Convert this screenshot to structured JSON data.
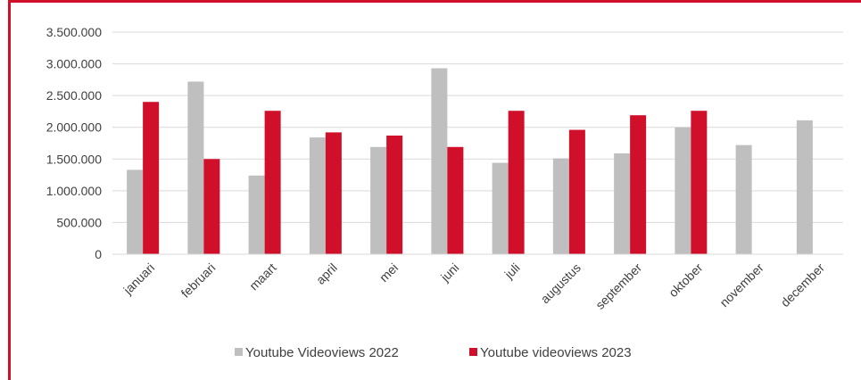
{
  "chart_data": {
    "type": "bar",
    "categories": [
      "januari",
      "februari",
      "maart",
      "april",
      "mei",
      "juni",
      "juli",
      "augustus",
      "september",
      "oktober",
      "november",
      "december"
    ],
    "series": [
      {
        "name": "Youtube Videoviews 2022",
        "color": "#bfbfbf",
        "values": [
          1330000,
          2720000,
          1240000,
          1840000,
          1690000,
          2930000,
          1440000,
          1510000,
          1590000,
          2000000,
          1720000,
          2110000
        ]
      },
      {
        "name": "Youtube videoviews 2023",
        "color": "#d0102a",
        "values": [
          2400000,
          1500000,
          2260000,
          1920000,
          1870000,
          1690000,
          2260000,
          1960000,
          2190000,
          2260000,
          null,
          null
        ]
      }
    ],
    "ylim": [
      0,
      3500000
    ],
    "yticks": [
      0,
      500000,
      1000000,
      1500000,
      2000000,
      2500000,
      3000000,
      3500000
    ],
    "ytick_labels": [
      "0",
      "500.000",
      "1.000.000",
      "1.500.000",
      "2.000.000",
      "2.500.000",
      "3.000.000",
      "3.500.000"
    ],
    "grid": true,
    "legend_position": "bottom",
    "title": "",
    "xlabel": "",
    "ylabel": ""
  }
}
